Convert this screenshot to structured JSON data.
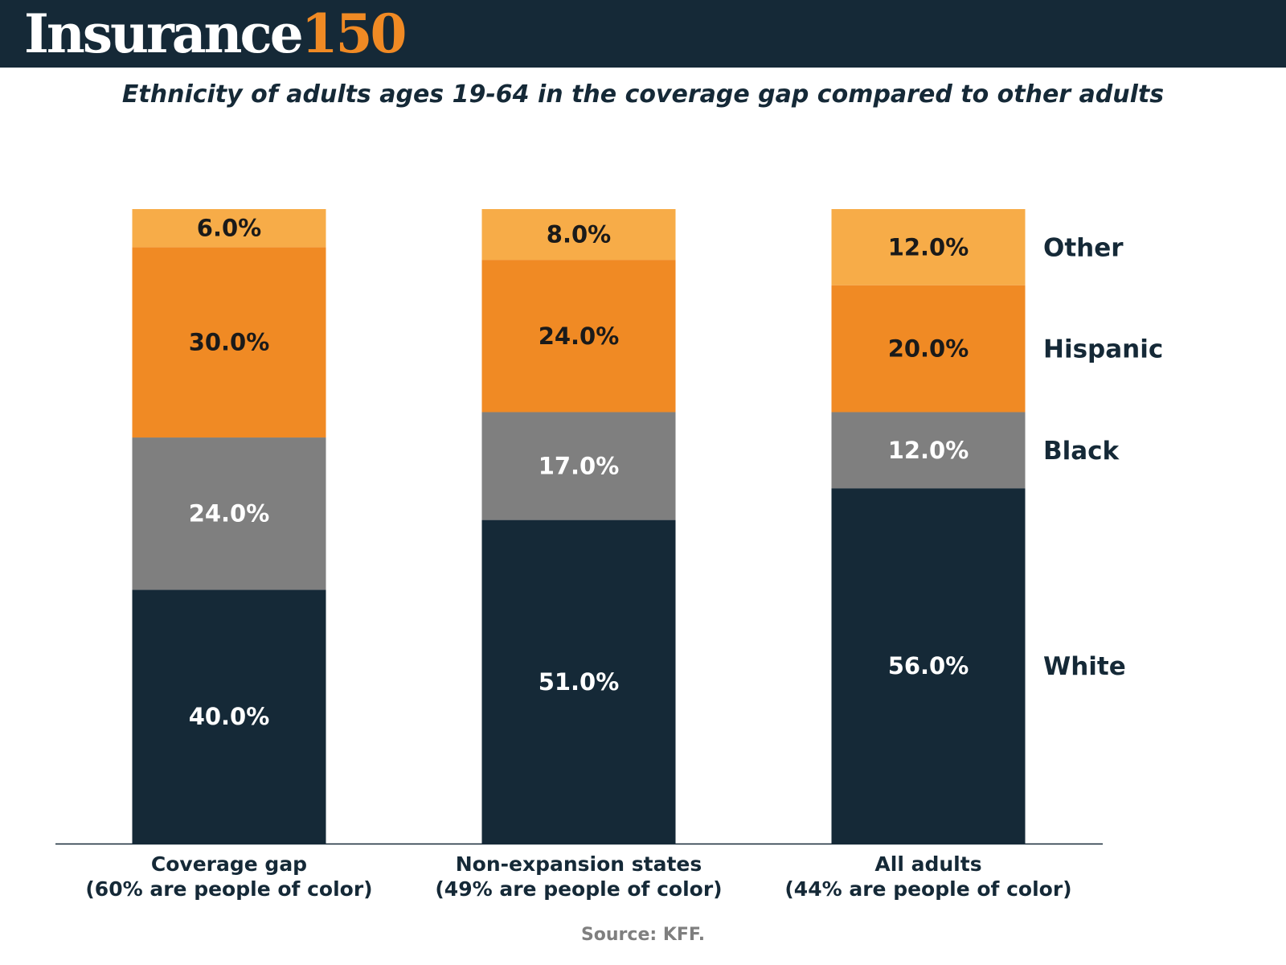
{
  "brand": {
    "logo_word": "Insurance",
    "logo_number": "150"
  },
  "chart_data": {
    "type": "bar",
    "stacked": true,
    "subtitle": "Ethnicity of adults ages 19-64 in the coverage gap compared to other adults",
    "categories": [
      [
        "Coverage gap",
        "(60% are people of color)"
      ],
      [
        "Non-expansion states",
        "(49% are people of color)"
      ],
      [
        "All adults",
        "(44% are people of color)"
      ]
    ],
    "series": [
      {
        "name": "White",
        "values": [
          40.0,
          51.0,
          56.0
        ],
        "color": "#152937",
        "label_color": "#ffffff"
      },
      {
        "name": "Black",
        "values": [
          24.0,
          17.0,
          12.0
        ],
        "color": "#7f7f7f",
        "label_color": "#ffffff"
      },
      {
        "name": "Hispanic",
        "values": [
          30.0,
          24.0,
          20.0
        ],
        "color": "#f08a24",
        "label_color": "#1a1a1a"
      },
      {
        "name": "Other",
        "values": [
          6.0,
          8.0,
          12.0
        ],
        "color": "#f7ac48",
        "label_color": "#1a1a1a"
      }
    ],
    "value_format": "0.0%",
    "ylim": [
      0,
      100
    ],
    "legend": "right",
    "grid": false
  },
  "source": "Source: KFF."
}
